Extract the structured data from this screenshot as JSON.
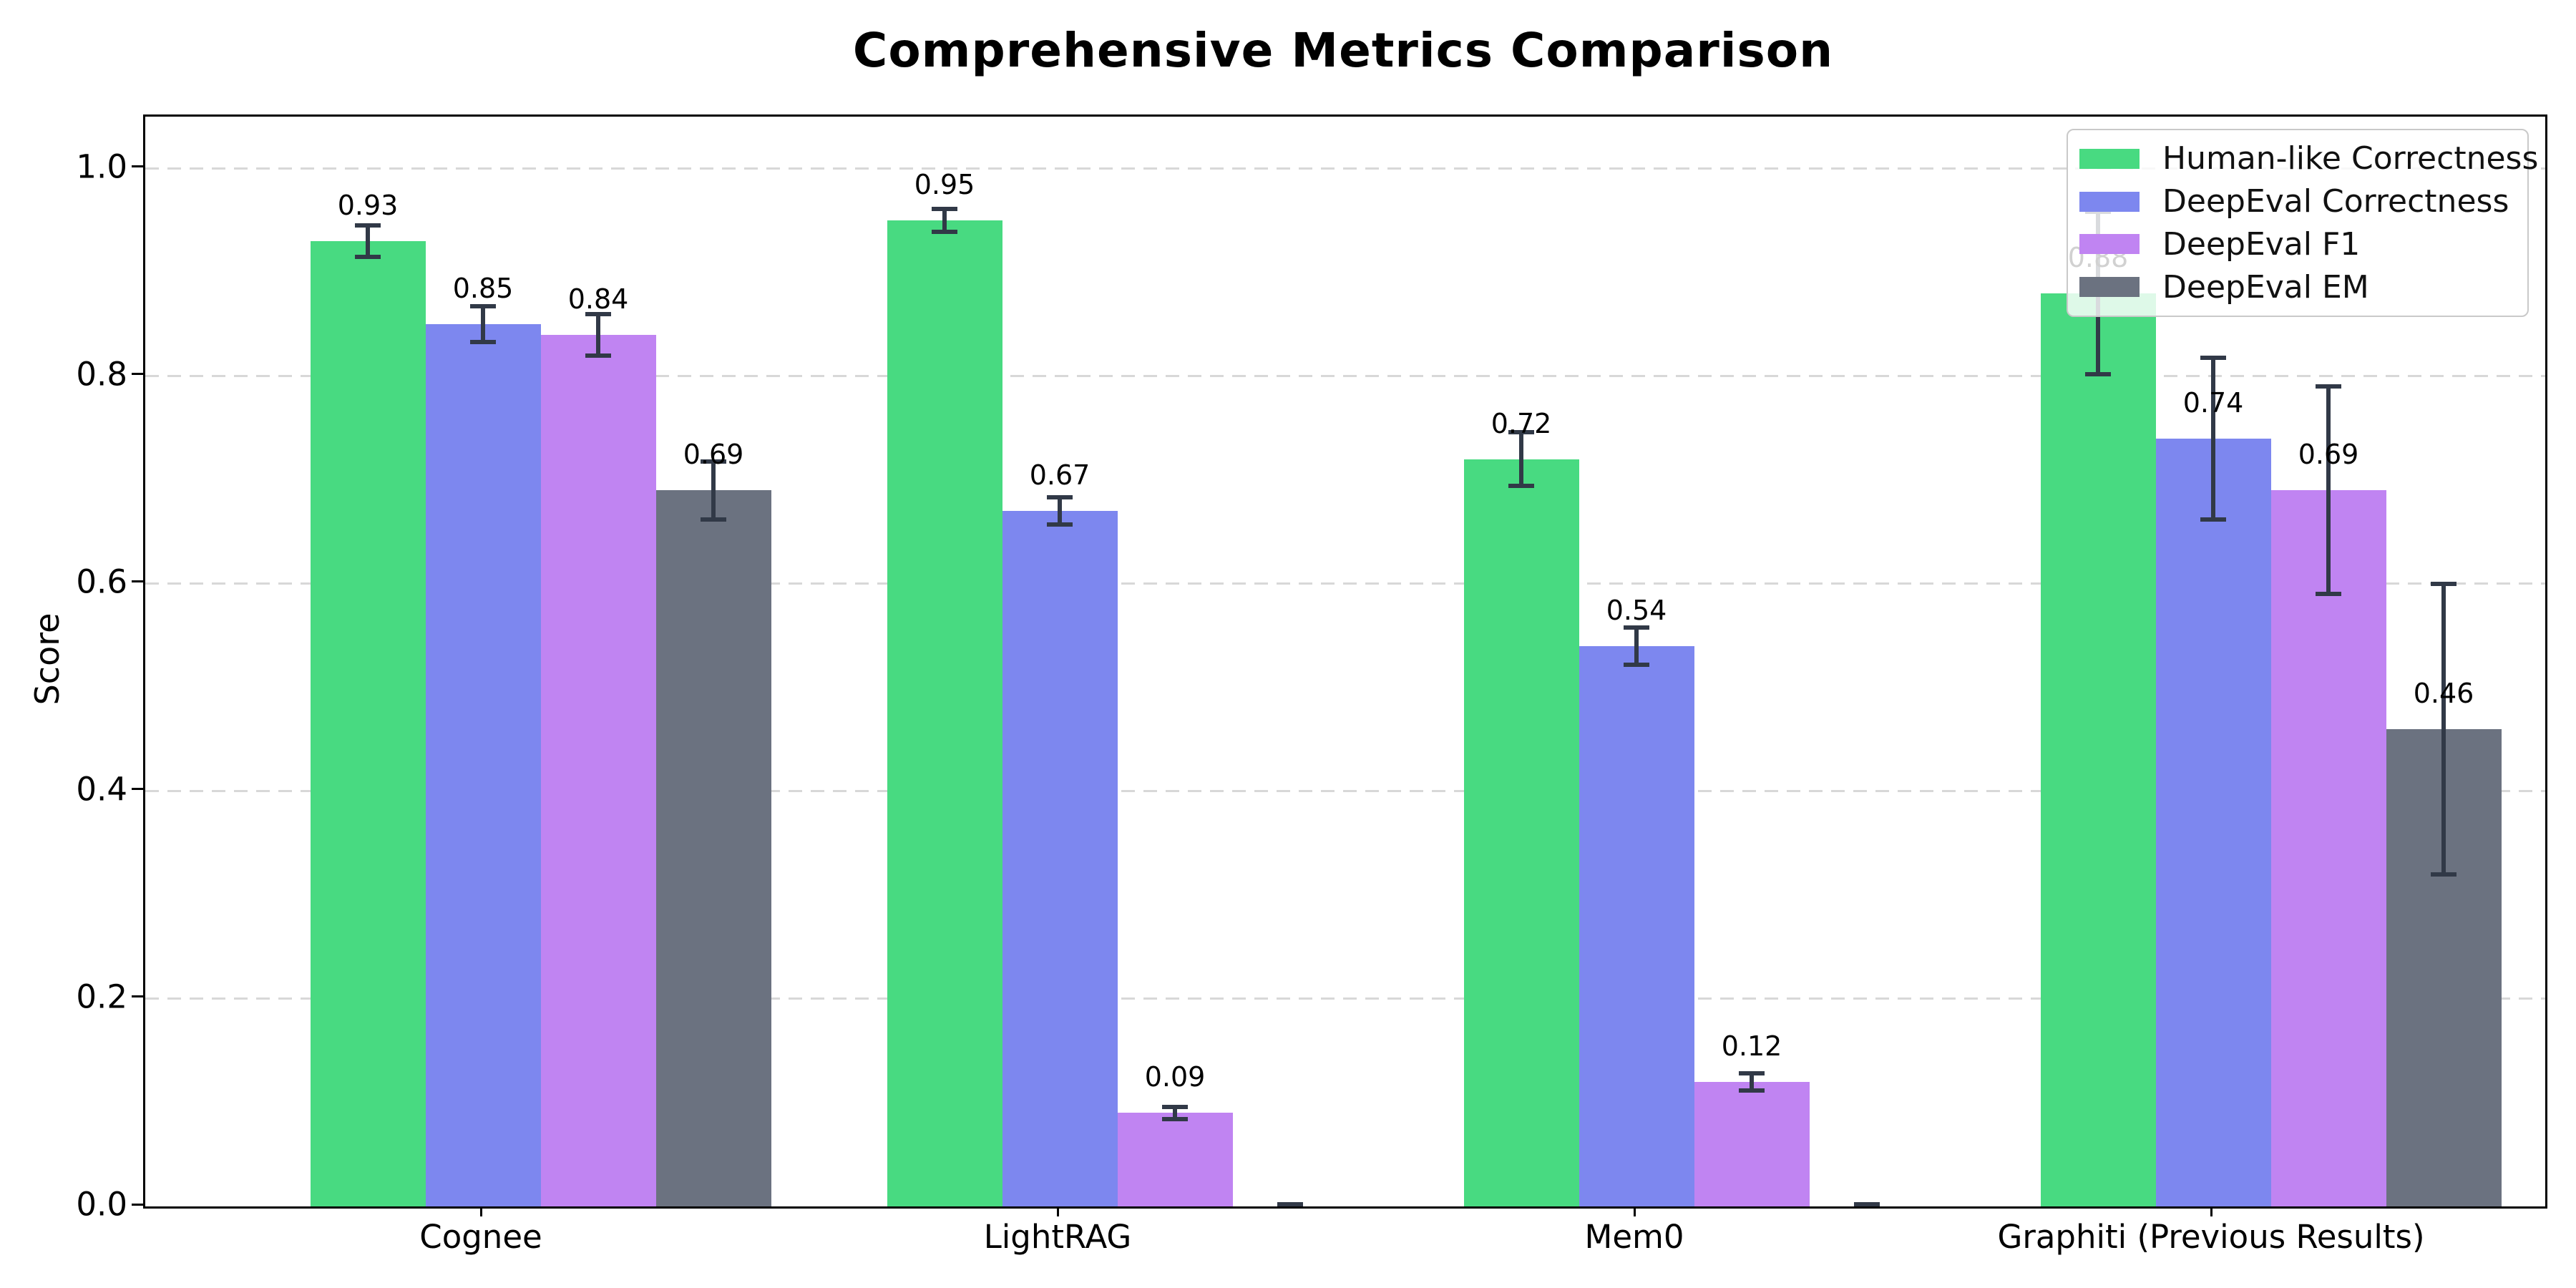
{
  "chart_data": {
    "type": "bar",
    "title": "Comprehensive Metrics Comparison",
    "ylabel": "Score",
    "xlabel": "",
    "categories": [
      "Cognee",
      "LightRAG",
      "Mem0",
      "Graphiti (Previous Results)"
    ],
    "series": [
      {
        "name": "Human-like Correctness",
        "color": "#48da81",
        "values": [
          0.93,
          0.95,
          0.72,
          0.88
        ],
        "errors": [
          0.015,
          0.011,
          0.026,
          0.078
        ]
      },
      {
        "name": "DeepEval Correctness",
        "color": "#7d87ef",
        "values": [
          0.85,
          0.67,
          0.54,
          0.74
        ],
        "errors": [
          0.017,
          0.013,
          0.018,
          0.078
        ]
      },
      {
        "name": "DeepEval F1",
        "color": "#c084f2",
        "values": [
          0.84,
          0.09,
          0.12,
          0.69
        ],
        "errors": [
          0.02,
          0.006,
          0.008,
          0.1
        ]
      },
      {
        "name": "DeepEval EM",
        "color": "#6b7280",
        "values": [
          0.69,
          0.0,
          0.0,
          0.46
        ],
        "errors": [
          0.028,
          0.002,
          0.002,
          0.14
        ]
      }
    ],
    "value_labels": {
      "format": "2-decimals",
      "hide_zero_values": true,
      "visible_labels": [
        "0.93",
        "0.85",
        "0.84",
        "0.69",
        "0.95",
        "0.67",
        "0.09",
        "0.72",
        "0.54",
        "0.12",
        "0.88",
        "0.74",
        "0.69",
        "0.46"
      ]
    },
    "ylim": [
      0,
      1.05
    ],
    "yticks": {
      "values": [
        0.0,
        0.2,
        0.4,
        0.6,
        0.8,
        1.0
      ],
      "labels": [
        "0.0",
        "0.2",
        "0.4",
        "0.6",
        "0.8",
        "1.0"
      ]
    },
    "grid": "horizontal-dashed",
    "grid_color": "#d8d8d8",
    "error_bar_color": "#313947",
    "spine_color": "#000000",
    "legend": {
      "position": "upper-right",
      "entries": [
        "Human-like Correctness",
        "DeepEval Correctness",
        "DeepEval F1",
        "DeepEval EM"
      ]
    }
  }
}
